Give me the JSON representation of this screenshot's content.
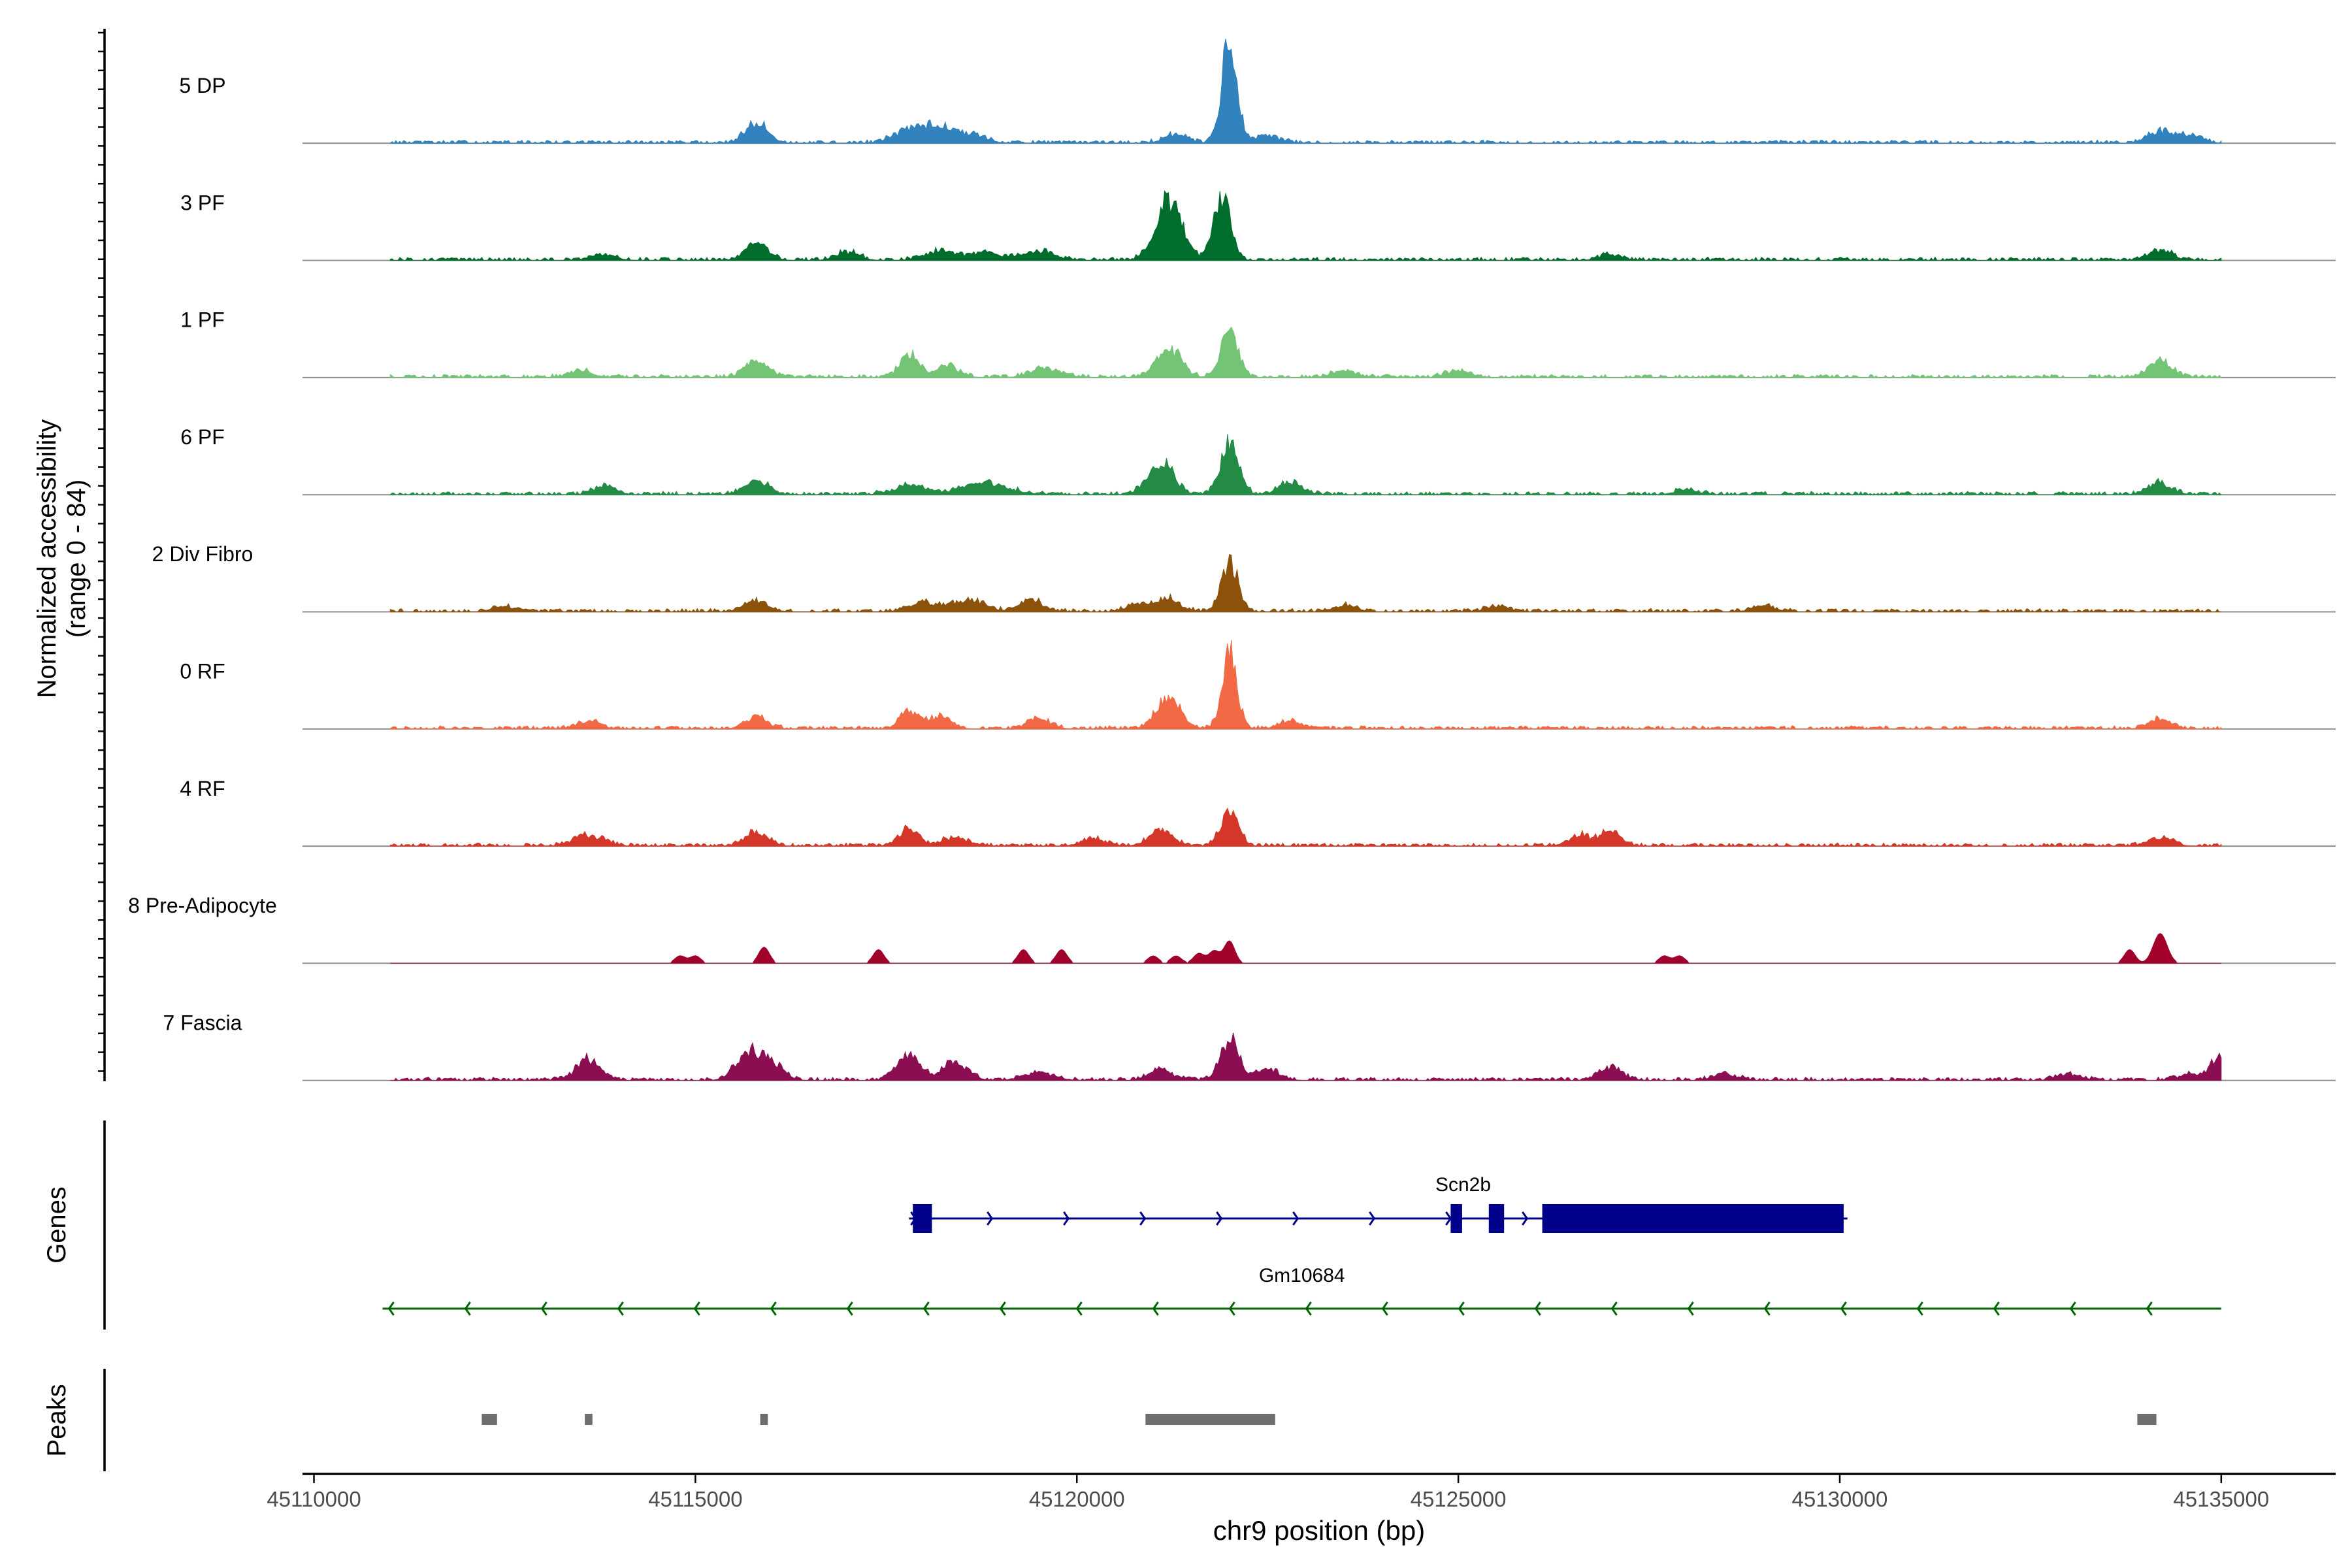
{
  "chart_data": {
    "type": "area",
    "title": "",
    "xlabel": "chr9 position (bp)",
    "ylabel": "Normalized accessibility",
    "ylabel_range": "(range 0 - 84)",
    "xlim": [
      45109850,
      45136500
    ],
    "ylim": [
      0,
      84
    ],
    "x_ticks": [
      45110000,
      45115000,
      45120000,
      45125000,
      45130000,
      45135000
    ],
    "x_tick_labels": [
      "45110000",
      "45115000",
      "45120000",
      "45125000",
      "45130000",
      "45135000"
    ],
    "coverage_range_bp": [
      45111000,
      45135000
    ],
    "series": [
      {
        "name": "5 DP",
        "color": "#3182bd",
        "peaks": [
          [
            45115800,
            16,
            140
          ],
          [
            45117800,
            10,
            200
          ],
          [
            45118200,
            12,
            200
          ],
          [
            45118600,
            6,
            200
          ],
          [
            45121300,
            7,
            150
          ],
          [
            45122000,
            84,
            100
          ],
          [
            45122500,
            5,
            160
          ],
          [
            45134200,
            9,
            150
          ],
          [
            45134600,
            6,
            150
          ]
        ]
      },
      {
        "name": "3 PF",
        "color": "#006d2c",
        "peaks": [
          [
            45113800,
            5,
            150
          ],
          [
            45115800,
            13,
            150
          ],
          [
            45117000,
            6,
            150
          ],
          [
            45118200,
            7,
            200
          ],
          [
            45118800,
            6,
            200
          ],
          [
            45119500,
            7,
            200
          ],
          [
            45121200,
            48,
            170
          ],
          [
            45121900,
            52,
            110
          ],
          [
            45127000,
            4,
            150
          ],
          [
            45134200,
            8,
            150
          ]
        ]
      },
      {
        "name": "1 PF",
        "color": "#74c476",
        "peaks": [
          [
            45113500,
            5,
            150
          ],
          [
            45115800,
            14,
            150
          ],
          [
            45117800,
            18,
            120
          ],
          [
            45118300,
            9,
            150
          ],
          [
            45119600,
            7,
            200
          ],
          [
            45121200,
            23,
            160
          ],
          [
            45122000,
            38,
            110
          ],
          [
            45123500,
            6,
            150
          ],
          [
            45125000,
            5,
            150
          ],
          [
            45134200,
            14,
            150
          ]
        ]
      },
      {
        "name": "6 PF",
        "color": "#238b45",
        "peaks": [
          [
            45113800,
            6,
            150
          ],
          [
            45115800,
            11,
            150
          ],
          [
            45117800,
            7,
            200
          ],
          [
            45118800,
            9,
            300
          ],
          [
            45121100,
            26,
            160
          ],
          [
            45122000,
            40,
            120
          ],
          [
            45122800,
            10,
            150
          ],
          [
            45128000,
            4,
            150
          ],
          [
            45134200,
            9,
            150
          ]
        ]
      },
      {
        "name": "2 Div Fibro",
        "color": "#8c510a",
        "peaks": [
          [
            45112500,
            4,
            150
          ],
          [
            45115800,
            9,
            150
          ],
          [
            45118000,
            7,
            200
          ],
          [
            45118600,
            9,
            200
          ],
          [
            45119400,
            9,
            150
          ],
          [
            45120800,
            6,
            150
          ],
          [
            45121200,
            10,
            150
          ],
          [
            45122000,
            40,
            110
          ],
          [
            45123500,
            5,
            150
          ],
          [
            45125500,
            4,
            150
          ],
          [
            45129000,
            4,
            150
          ]
        ]
      },
      {
        "name": "0 RF",
        "color": "#f16a45",
        "peaks": [
          [
            45113600,
            6,
            150
          ],
          [
            45115800,
            9,
            150
          ],
          [
            45117800,
            14,
            120
          ],
          [
            45118200,
            9,
            150
          ],
          [
            45119500,
            8,
            150
          ],
          [
            45121200,
            26,
            160
          ],
          [
            45122000,
            58,
            100
          ],
          [
            45122800,
            6,
            150
          ],
          [
            45134200,
            7,
            150
          ]
        ]
      },
      {
        "name": "4 RF",
        "color": "#d43728",
        "peaks": [
          [
            45113600,
            8,
            200
          ],
          [
            45115800,
            11,
            150
          ],
          [
            45117800,
            13,
            120
          ],
          [
            45118400,
            6,
            200
          ],
          [
            45120200,
            6,
            150
          ],
          [
            45121100,
            12,
            160
          ],
          [
            45122000,
            30,
            110
          ],
          [
            45126600,
            8,
            150
          ],
          [
            45127000,
            12,
            120
          ],
          [
            45134200,
            7,
            150
          ]
        ]
      },
      {
        "name": "8 Pre-Adipocyte",
        "color": "#a0002a",
        "peaks": [
          [
            45114800,
            6,
            70
          ],
          [
            45115000,
            6,
            70
          ],
          [
            45115900,
            13,
            70
          ],
          [
            45117400,
            11,
            70
          ],
          [
            45119300,
            11,
            70
          ],
          [
            45119800,
            11,
            70
          ],
          [
            45121000,
            6,
            70
          ],
          [
            45121300,
            6,
            70
          ],
          [
            45121600,
            8,
            70
          ],
          [
            45121800,
            10,
            70
          ],
          [
            45122000,
            18,
            70
          ],
          [
            45127700,
            6,
            70
          ],
          [
            45127900,
            6,
            70
          ],
          [
            45133800,
            11,
            70
          ],
          [
            45134200,
            24,
            90
          ]
        ]
      },
      {
        "name": "7 Fascia",
        "color": "#8c0e52",
        "peaks": [
          [
            45113600,
            16,
            160
          ],
          [
            45115700,
            22,
            160
          ],
          [
            45116000,
            12,
            150
          ],
          [
            45117800,
            20,
            150
          ],
          [
            45118400,
            14,
            160
          ],
          [
            45119500,
            6,
            200
          ],
          [
            45121100,
            8,
            150
          ],
          [
            45122000,
            32,
            120
          ],
          [
            45122500,
            9,
            150
          ],
          [
            45127000,
            10,
            150
          ],
          [
            45128500,
            5,
            150
          ],
          [
            45133000,
            5,
            150
          ],
          [
            45134600,
            5,
            150
          ],
          [
            45135000,
            20,
            120
          ]
        ]
      }
    ],
    "genes": [
      {
        "name": "Scn2b",
        "color": "#00008b",
        "start": 45117800,
        "end": 45130100,
        "strand": "+",
        "exons": [
          [
            45117850,
            45118100
          ],
          [
            45124900,
            45125050
          ],
          [
            45125400,
            45125600
          ],
          [
            45126100,
            45130050
          ]
        ]
      },
      {
        "name": "Gm10684",
        "color": "#006400",
        "start": 45110900,
        "end": 45135000,
        "strand": "-",
        "exons": []
      }
    ],
    "peaks_track": [
      [
        45112200,
        45112400
      ],
      [
        45113550,
        45113650
      ],
      [
        45115850,
        45115950
      ],
      [
        45120900,
        45122600
      ],
      [
        45133900,
        45134150
      ]
    ],
    "peaks_color": "#6e6e6e",
    "gene_track_label": "Genes",
    "peak_track_label": "Peaks"
  }
}
